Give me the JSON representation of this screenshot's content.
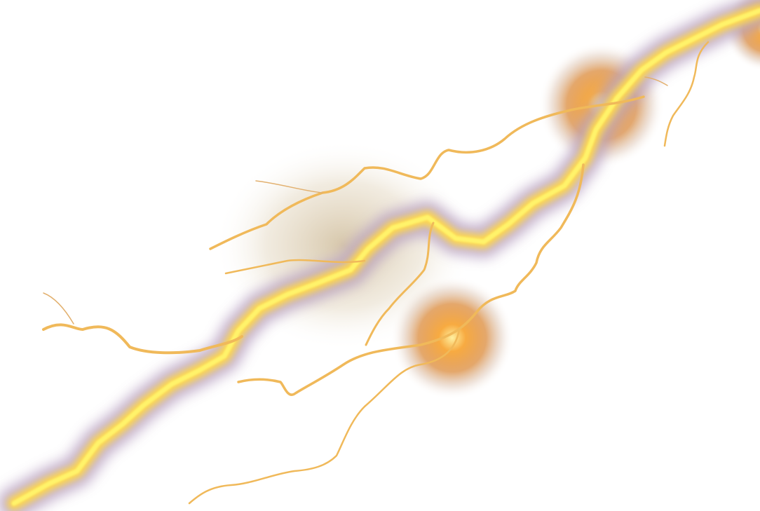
{
  "scene": {
    "subject": "lightning-bolt",
    "background_color": "#ffffff",
    "colors": {
      "core": "#fff36a",
      "bolt_yellow": "#ffe455",
      "halo_purple": "#b9a3c2",
      "branch_gold": "#f0b95a",
      "branch_light": "#e2b06e",
      "flare_orange": "#e0852a",
      "flare_hot": "#ffd86a",
      "haze_tan": "#c9b48e"
    }
  }
}
